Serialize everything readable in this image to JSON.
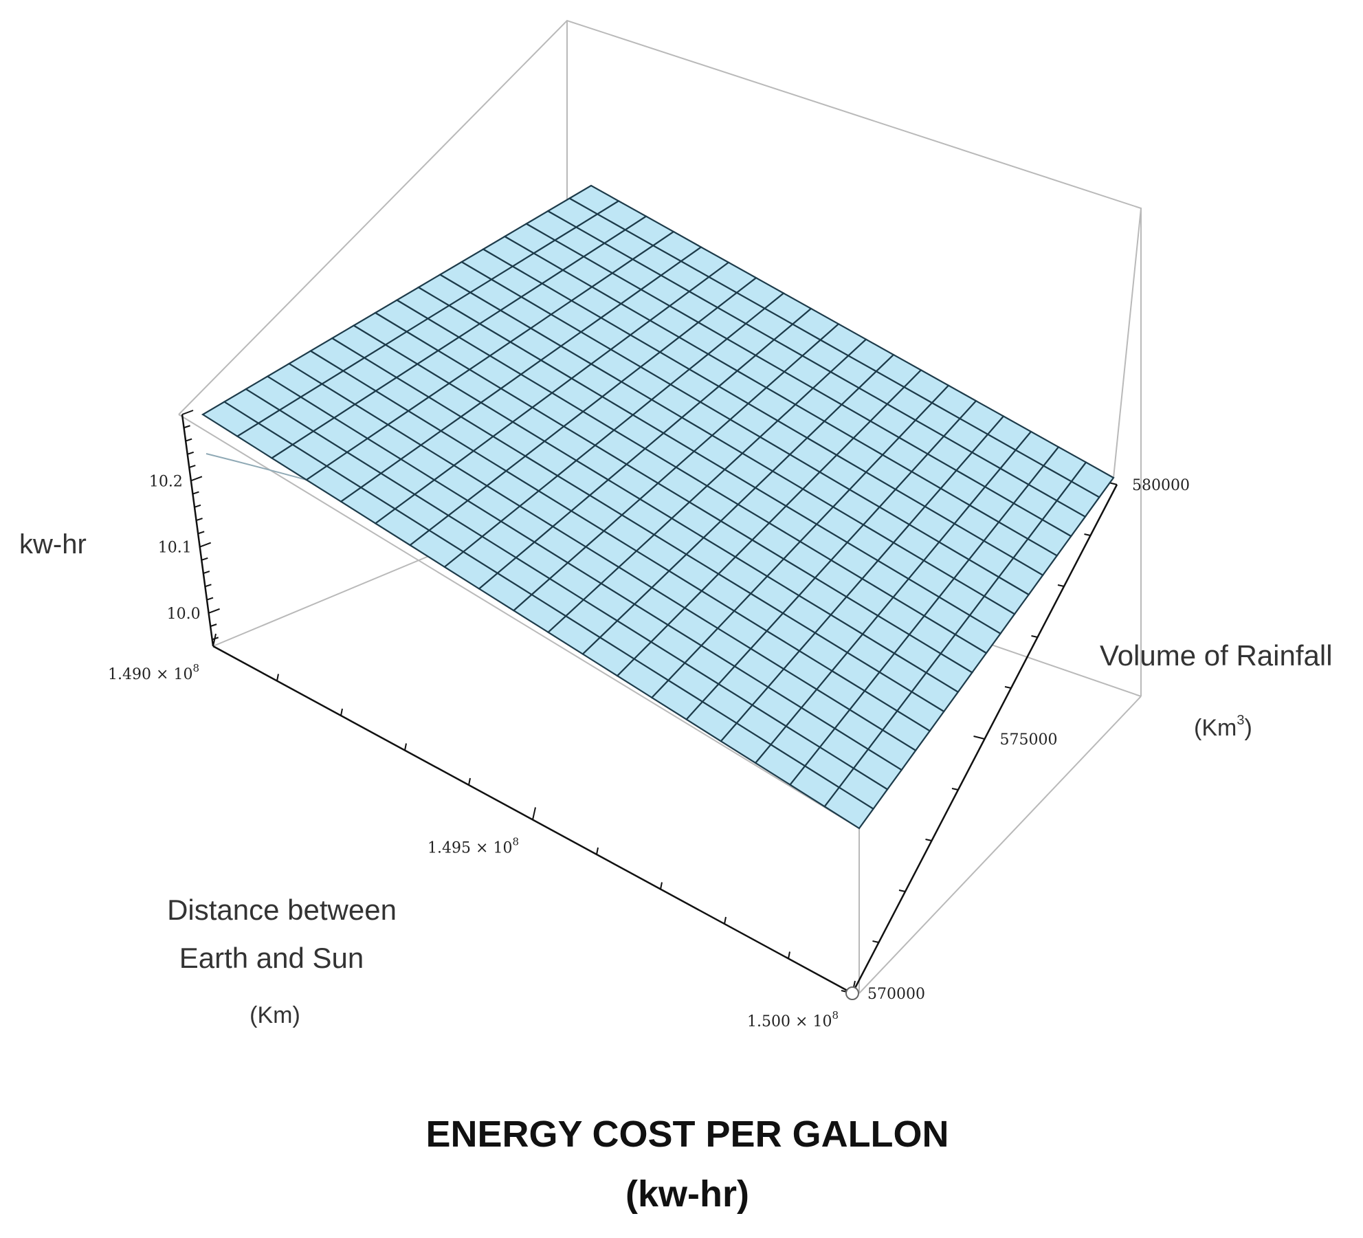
{
  "chart_data": {
    "type": "surface3d",
    "title": "ENERGY COST PER GALLON",
    "subtitle": "(kw-hr)",
    "zlabel": "kw-hr",
    "xlabel_lines": [
      "Distance between",
      "Earth and Sun",
      "(Km)"
    ],
    "ylabel_lines": [
      "Volume of Rainfall",
      "(Km",
      "3",
      ")"
    ],
    "x_ticks": [
      {
        "value": 149000000,
        "mantissa": "1.490",
        "exponent": "8"
      },
      {
        "value": 149500000,
        "mantissa": "1.495",
        "exponent": "8"
      },
      {
        "value": 150000000,
        "mantissa": "1.500",
        "exponent": "8"
      }
    ],
    "y_ticks": [
      {
        "value": 570000,
        "label": "570000"
      },
      {
        "value": 575000,
        "label": "575000"
      },
      {
        "value": 580000,
        "label": "580000"
      }
    ],
    "z_ticks": [
      {
        "value": 10.0,
        "label": "10.0"
      },
      {
        "value": 10.1,
        "label": "10.1"
      },
      {
        "value": 10.2,
        "label": "10.2"
      }
    ],
    "xlim": [
      149000000,
      150000000
    ],
    "ylim": [
      570000,
      580000
    ],
    "zlim": [
      9.95,
      10.3
    ],
    "surface": {
      "corners": [
        {
          "x": 149000000,
          "y": 580000,
          "z": 10.27
        },
        {
          "x": 149000000,
          "y": 570000,
          "z": 10.27
        },
        {
          "x": 150000000,
          "y": 580000,
          "z": 10.06
        },
        {
          "x": 150000000,
          "y": 570000,
          "z": 10.06
        }
      ],
      "grid_rows": 19,
      "grid_cols": 18
    },
    "grid": false,
    "colors": {
      "surface_fill": "#bfe6f5",
      "mesh": "#1d3b4a",
      "box": "#b9b9b9"
    }
  }
}
